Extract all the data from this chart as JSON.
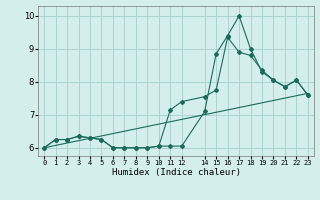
{
  "xlabel": "Humidex (Indice chaleur)",
  "bg_color": "#d4eeeb",
  "grid_color": "#aad4d0",
  "line_color": "#1a6b5a",
  "xlim": [
    -0.5,
    23.5
  ],
  "ylim": [
    5.75,
    10.3
  ],
  "yticks": [
    6,
    7,
    8,
    9,
    10
  ],
  "xtick_positions": [
    0,
    1,
    2,
    3,
    4,
    5,
    6,
    7,
    8,
    9,
    10,
    11,
    12,
    14,
    15,
    16,
    17,
    18,
    19,
    20,
    21,
    22,
    23
  ],
  "xtick_labels": [
    "0",
    "1",
    "2",
    "3",
    "4",
    "5",
    "6",
    "7",
    "8",
    "9",
    "10",
    "11",
    "12",
    "14",
    "15",
    "16",
    "17",
    "18",
    "19",
    "20",
    "21",
    "22",
    "23"
  ],
  "line1_x": [
    0,
    1,
    2,
    3,
    4,
    5,
    6,
    7,
    8,
    9,
    10,
    11,
    12,
    14,
    15,
    16,
    17,
    18,
    19,
    20,
    21,
    22,
    23
  ],
  "line1_y": [
    6.0,
    6.25,
    6.25,
    6.35,
    6.3,
    6.25,
    6.0,
    6.0,
    6.0,
    6.0,
    6.05,
    6.05,
    6.05,
    7.1,
    8.85,
    9.4,
    10.0,
    9.0,
    8.3,
    8.05,
    7.85,
    8.05,
    7.6
  ],
  "line2_x": [
    0,
    1,
    2,
    3,
    4,
    5,
    6,
    7,
    8,
    9,
    10,
    11,
    12,
    14,
    15,
    16,
    17,
    18,
    19,
    20,
    21,
    22,
    23
  ],
  "line2_y": [
    6.0,
    6.25,
    6.25,
    6.35,
    6.3,
    6.25,
    6.0,
    6.0,
    6.0,
    6.0,
    6.05,
    7.15,
    7.4,
    7.55,
    7.75,
    9.35,
    8.9,
    8.8,
    8.35,
    8.05,
    7.85,
    8.05,
    7.6
  ],
  "line3_x": [
    0,
    23
  ],
  "line3_y": [
    6.0,
    7.65
  ]
}
